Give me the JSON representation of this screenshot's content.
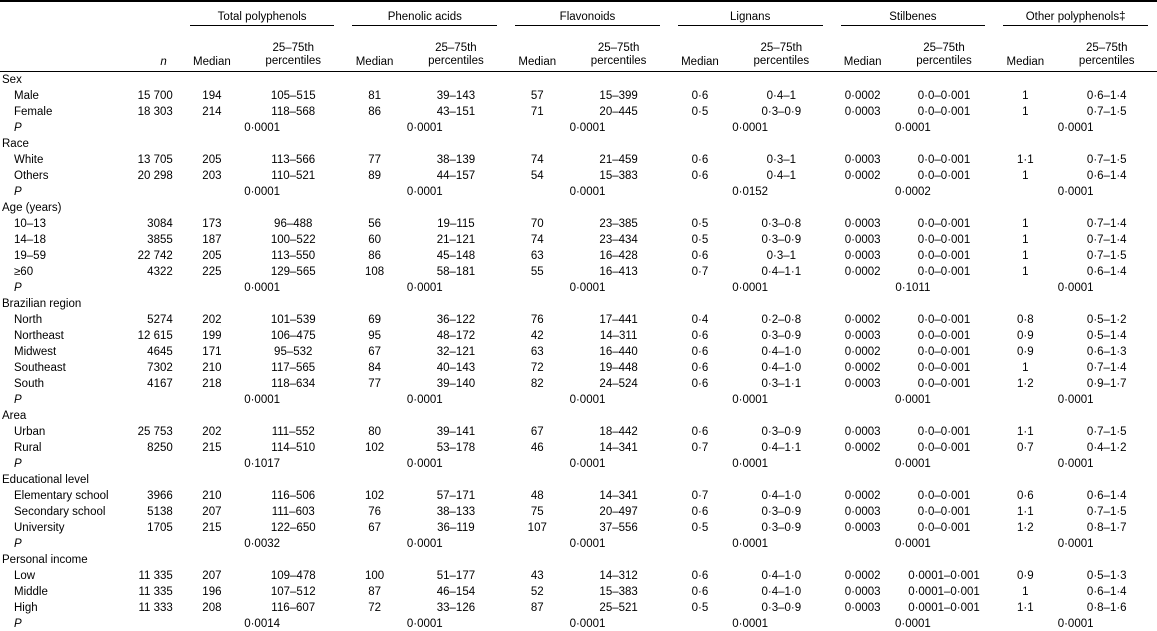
{
  "table": {
    "groups": [
      {
        "label": "Total polyphenols"
      },
      {
        "label": "Phenolic acids"
      },
      {
        "label": "Flavonoids"
      },
      {
        "label": "Lignans"
      },
      {
        "label": "Stilbenes"
      },
      {
        "label": "Other polyphenols‡"
      }
    ],
    "subheaders": {
      "n": "n",
      "median": "Median",
      "percentiles": "25–75th percentiles"
    },
    "p_row_label": "P",
    "sections": [
      {
        "label": "Sex",
        "rows": [
          {
            "label": "Male",
            "n": "15 700",
            "values": [
              "194",
              "105–515",
              "81",
              "39–143",
              "57",
              "15–399",
              "0·6",
              "0·4–1",
              "0·0002",
              "0·0–0·001",
              "1",
              "0·6–1·4"
            ]
          },
          {
            "label": "Female",
            "n": "18 303",
            "values": [
              "214",
              "118–568",
              "86",
              "43–151",
              "71",
              "20–445",
              "0·5",
              "0·3–0·9",
              "0·0003",
              "0·0–0·001",
              "1",
              "0·7–1·5"
            ]
          }
        ],
        "p_values": [
          "0·0001",
          "0·0001",
          "0·0001",
          "0·0001",
          "0·0001",
          "0·0001"
        ]
      },
      {
        "label": "Race",
        "rows": [
          {
            "label": "White",
            "n": "13 705",
            "values": [
              "205",
              "113–566",
              "77",
              "38–139",
              "74",
              "21–459",
              "0·6",
              "0·3–1",
              "0·0003",
              "0·0–0·001",
              "1·1",
              "0·7–1·5"
            ]
          },
          {
            "label": "Others",
            "n": "20 298",
            "values": [
              "203",
              "110–521",
              "89",
              "44–157",
              "54",
              "15–383",
              "0·6",
              "0·4–1",
              "0·0002",
              "0·0–0·001",
              "1",
              "0·6–1·4"
            ]
          }
        ],
        "p_values": [
          "0·0001",
          "0·0001",
          "0·0001",
          "0·0152",
          "0·0002",
          "0·0001"
        ]
      },
      {
        "label": "Age (years)",
        "rows": [
          {
            "label": "10–13",
            "n": "3084",
            "values": [
              "173",
              "96–488",
              "56",
              "19–115",
              "70",
              "23–385",
              "0·5",
              "0·3–0·8",
              "0·0003",
              "0·0–0·001",
              "1",
              "0·7–1·4"
            ]
          },
          {
            "label": "14–18",
            "n": "3855",
            "values": [
              "187",
              "100–522",
              "60",
              "21–121",
              "74",
              "23–434",
              "0·5",
              "0·3–0·9",
              "0·0003",
              "0·0–0·001",
              "1",
              "0·7–1·4"
            ]
          },
          {
            "label": "19–59",
            "n": "22 742",
            "values": [
              "205",
              "113–550",
              "86",
              "45–148",
              "63",
              "16–428",
              "0·6",
              "0·3–1",
              "0·0003",
              "0·0–0·001",
              "1",
              "0·7–1·5"
            ]
          },
          {
            "label": "≥60",
            "n": "4322",
            "values": [
              "225",
              "129–565",
              "108",
              "58–181",
              "55",
              "16–413",
              "0·7",
              "0·4–1·1",
              "0·0002",
              "0·0–0·001",
              "1",
              "0·6–1·4"
            ]
          }
        ],
        "p_values": [
          "0·0001",
          "0·0001",
          "0·0001",
          "0·0001",
          "0·1011",
          "0·0001"
        ]
      },
      {
        "label": "Brazilian region",
        "rows": [
          {
            "label": "North",
            "n": "5274",
            "values": [
              "202",
              "101–539",
              "69",
              "36–122",
              "76",
              "17–441",
              "0·4",
              "0·2–0·8",
              "0·0002",
              "0·0–0·001",
              "0·8",
              "0·5–1·2"
            ]
          },
          {
            "label": "Northeast",
            "n": "12 615",
            "values": [
              "199",
              "106–475",
              "95",
              "48–172",
              "42",
              "14–311",
              "0·6",
              "0·3–0·9",
              "0·0003",
              "0·0–0·001",
              "0·9",
              "0·5–1·4"
            ]
          },
          {
            "label": "Midwest",
            "n": "4645",
            "values": [
              "171",
              "95–532",
              "67",
              "32–121",
              "63",
              "16–440",
              "0·6",
              "0·4–1·0",
              "0·0002",
              "0·0–0·001",
              "0·9",
              "0·6–1·3"
            ]
          },
          {
            "label": "Southeast",
            "n": "7302",
            "values": [
              "210",
              "117–565",
              "84",
              "40–143",
              "72",
              "19–448",
              "0·6",
              "0·4–1·0",
              "0·0002",
              "0·0–0·001",
              "1",
              "0·7–1·4"
            ]
          },
          {
            "label": "South",
            "n": "4167",
            "values": [
              "218",
              "118–634",
              "77",
              "39–140",
              "82",
              "24–524",
              "0·6",
              "0·3–1·1",
              "0·0003",
              "0·0–0·001",
              "1·2",
              "0·9–1·7"
            ]
          }
        ],
        "p_values": [
          "0·0001",
          "0·0001",
          "0·0001",
          "0·0001",
          "0·0001",
          "0·0001"
        ]
      },
      {
        "label": "Area",
        "rows": [
          {
            "label": "Urban",
            "n": "25 753",
            "values": [
              "202",
              "111–552",
              "80",
              "39–141",
              "67",
              "18–442",
              "0·6",
              "0·3–0·9",
              "0·0003",
              "0·0–0·001",
              "1·1",
              "0·7–1·5"
            ]
          },
          {
            "label": "Rural",
            "n": "8250",
            "values": [
              "215",
              "114–510",
              "102",
              "53–178",
              "46",
              "14–341",
              "0·7",
              "0·4–1·1",
              "0·0002",
              "0·0–0·001",
              "0·7",
              "0·4–1·2"
            ]
          }
        ],
        "p_values": [
          "0·1017",
          "0·0001",
          "0·0001",
          "0·0001",
          "0·0001",
          "0·0001"
        ]
      },
      {
        "label": "Educational level",
        "rows": [
          {
            "label": "Elementary school",
            "n": "3966",
            "values": [
              "210",
              "116–506",
              "102",
              "57–171",
              "48",
              "14–341",
              "0·7",
              "0·4–1·0",
              "0·0002",
              "0·0–0·001",
              "0·6",
              "0·6–1·4"
            ]
          },
          {
            "label": "Secondary school",
            "n": "5138",
            "values": [
              "207",
              "111–603",
              "76",
              "38–133",
              "75",
              "20–497",
              "0·6",
              "0·3–0·9",
              "0·0003",
              "0·0–0·001",
              "1·1",
              "0·7–1·5"
            ]
          },
          {
            "label": "University",
            "n": "1705",
            "values": [
              "215",
              "122–650",
              "67",
              "36–119",
              "107",
              "37–556",
              "0·5",
              "0·3–0·9",
              "0·0003",
              "0·0–0·001",
              "1·2",
              "0·8–1·7"
            ]
          }
        ],
        "p_values": [
          "0·0032",
          "0·0001",
          "0·0001",
          "0·0001",
          "0·0001",
          "0·0001"
        ]
      },
      {
        "label": "Personal income",
        "rows": [
          {
            "label": "Low",
            "n": "11 335",
            "values": [
              "207",
              "109–478",
              "100",
              "51–177",
              "43",
              "14–312",
              "0·6",
              "0·4–1·0",
              "0·0002",
              "0·0001–0·001",
              "0·9",
              "0·5–1·3"
            ]
          },
          {
            "label": "Middle",
            "n": "11 335",
            "values": [
              "196",
              "107–512",
              "87",
              "46–154",
              "52",
              "15–383",
              "0·6",
              "0·4–1·0",
              "0·0003",
              "0·0001–0·001",
              "1",
              "0·6–1·4"
            ]
          },
          {
            "label": "High",
            "n": "11 333",
            "values": [
              "208",
              "116–607",
              "72",
              "33–126",
              "87",
              "25–521",
              "0·5",
              "0·3–0·9",
              "0·0003",
              "0·0001–0·001",
              "1·1",
              "0·8–1·6"
            ]
          }
        ],
        "p_values": [
          "0·0014",
          "0·0001",
          "0·0001",
          "0·0001",
          "0·0001",
          "0·0001"
        ]
      }
    ]
  }
}
